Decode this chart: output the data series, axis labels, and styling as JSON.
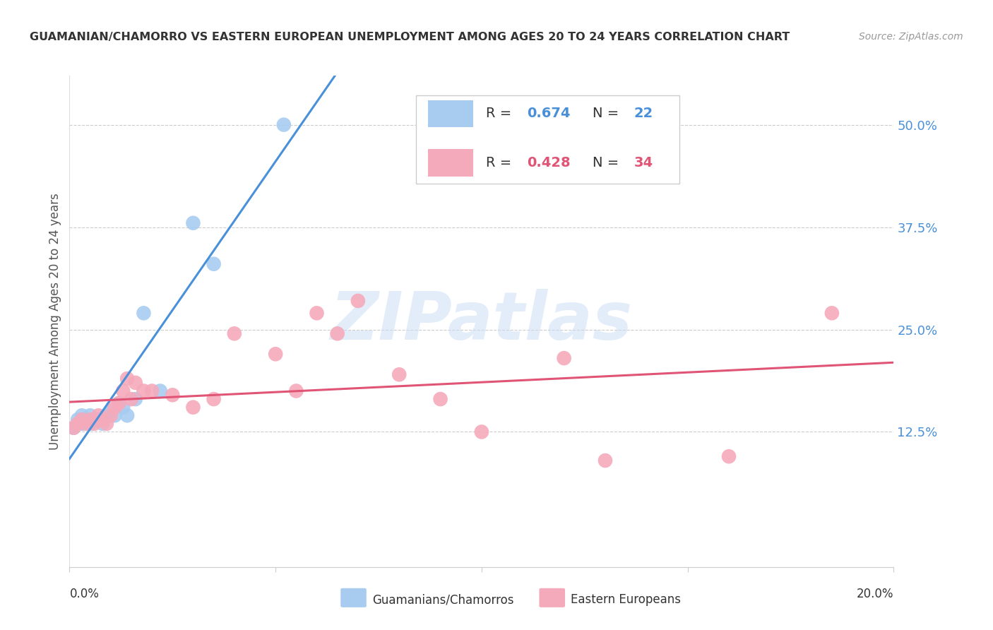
{
  "title": "GUAMANIAN/CHAMORRO VS EASTERN EUROPEAN UNEMPLOYMENT AMONG AGES 20 TO 24 YEARS CORRELATION CHART",
  "source": "Source: ZipAtlas.com",
  "ylabel": "Unemployment Among Ages 20 to 24 years",
  "right_yticks": [
    "50.0%",
    "37.5%",
    "25.0%",
    "12.5%"
  ],
  "right_ytick_vals": [
    0.5,
    0.375,
    0.25,
    0.125
  ],
  "watermark": "ZIPatlas",
  "blue_color": "#A8CCF0",
  "pink_color": "#F5AABB",
  "blue_line_color": "#4A90D9",
  "pink_line_color": "#E05575",
  "guamanian_x": [
    0.001,
    0.002,
    0.003,
    0.003,
    0.004,
    0.005,
    0.005,
    0.006,
    0.007,
    0.008,
    0.009,
    0.01,
    0.011,
    0.012,
    0.013,
    0.014,
    0.016,
    0.018,
    0.022,
    0.03,
    0.035,
    0.052
  ],
  "guamanian_y": [
    0.13,
    0.14,
    0.135,
    0.145,
    0.14,
    0.135,
    0.145,
    0.14,
    0.14,
    0.135,
    0.145,
    0.15,
    0.145,
    0.16,
    0.155,
    0.145,
    0.165,
    0.27,
    0.175,
    0.38,
    0.33,
    0.5
  ],
  "eastern_x": [
    0.001,
    0.002,
    0.003,
    0.004,
    0.005,
    0.006,
    0.007,
    0.008,
    0.009,
    0.01,
    0.011,
    0.012,
    0.013,
    0.014,
    0.015,
    0.016,
    0.018,
    0.02,
    0.025,
    0.03,
    0.035,
    0.04,
    0.05,
    0.055,
    0.06,
    0.065,
    0.07,
    0.08,
    0.09,
    0.1,
    0.12,
    0.13,
    0.16,
    0.185
  ],
  "eastern_y": [
    0.13,
    0.135,
    0.14,
    0.135,
    0.14,
    0.135,
    0.145,
    0.14,
    0.135,
    0.145,
    0.155,
    0.16,
    0.175,
    0.19,
    0.165,
    0.185,
    0.175,
    0.175,
    0.17,
    0.155,
    0.165,
    0.245,
    0.22,
    0.175,
    0.27,
    0.245,
    0.285,
    0.195,
    0.165,
    0.125,
    0.215,
    0.09,
    0.095,
    0.27
  ],
  "xlim": [
    0.0,
    0.2
  ],
  "ylim": [
    -0.04,
    0.56
  ],
  "figsize": [
    14.06,
    8.92
  ],
  "dpi": 100
}
